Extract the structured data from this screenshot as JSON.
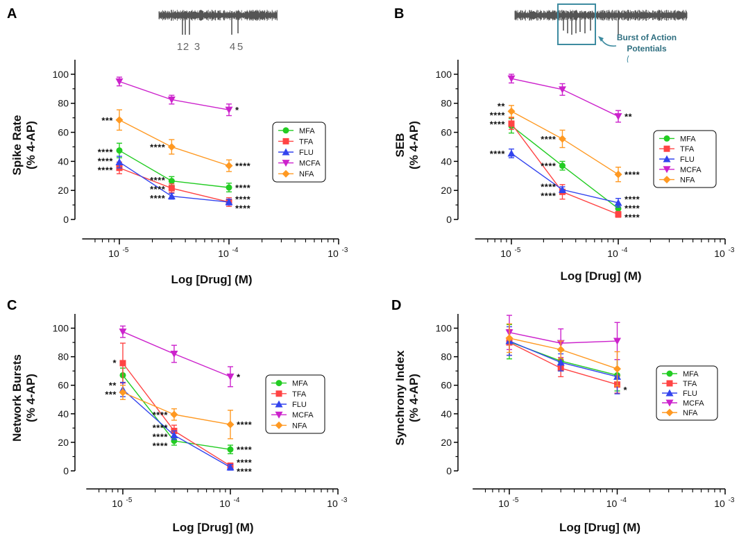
{
  "figure": {
    "trace_a_labels": [
      "1",
      "2",
      "3",
      "4",
      "5"
    ],
    "trace_b_callout": [
      "Burst of Action",
      "Potentials"
    ]
  },
  "colors": {
    "MFA": "#22cc22",
    "TFA": "#ff4444",
    "FLU": "#3344ee",
    "MCFA": "#cc22cc",
    "NFA": "#ff9922",
    "trace": "#555555",
    "callout": "#3d8ba0"
  },
  "chart_data": [
    {
      "panel": "A",
      "type": "line",
      "ylabel": [
        "Spike Rate",
        "(% 4-AP)"
      ],
      "xlabel": "Log [Drug] (M)",
      "xscale": "log",
      "xlim": [
        5e-06,
        0.001
      ],
      "ylim": [
        0,
        110
      ],
      "yticks": [
        "0",
        "20",
        "40",
        "60",
        "80",
        "100"
      ],
      "xtick_labels": [
        {
          "base": "10",
          "exp": "-5"
        },
        {
          "base": "10",
          "exp": "-4"
        },
        {
          "base": "10",
          "exp": "-3"
        }
      ],
      "legend": [
        "MFA",
        "TFA",
        "FLU",
        "MCFA",
        "NFA"
      ],
      "legend_position": "right",
      "x": [
        1e-05,
        3e-05,
        0.0001
      ],
      "series": [
        {
          "name": "MFA",
          "values": [
            47.5,
            26.5,
            22
          ],
          "err": [
            5,
            3,
            3
          ]
        },
        {
          "name": "TFA",
          "values": [
            35.5,
            21.5,
            12
          ],
          "err": [
            4,
            3,
            3
          ]
        },
        {
          "name": "FLU",
          "values": [
            39.5,
            16,
            12
          ],
          "err": [
            4,
            2,
            2
          ]
        },
        {
          "name": "MCFA",
          "values": [
            95,
            82.5,
            75.5
          ],
          "err": [
            3,
            3,
            4
          ]
        },
        {
          "name": "NFA",
          "values": [
            68.5,
            50,
            37
          ],
          "err": [
            7,
            5,
            4
          ]
        }
      ],
      "annotations": [
        {
          "x": 1e-05,
          "y": 68.5,
          "side": "left",
          "lines": [
            "***"
          ]
        },
        {
          "x": 1e-05,
          "y": 40.5,
          "side": "left",
          "lines": [
            "****",
            "****",
            "****"
          ]
        },
        {
          "x": 3e-05,
          "y": 50,
          "side": "left",
          "lines": [
            "****"
          ]
        },
        {
          "x": 3e-05,
          "y": 21,
          "side": "left",
          "lines": [
            "****",
            "****",
            "****"
          ]
        },
        {
          "x": 0.0001,
          "y": 75.5,
          "side": "right",
          "lines": [
            "*"
          ]
        },
        {
          "x": 0.0001,
          "y": 37,
          "side": "right",
          "lines": [
            "****"
          ]
        },
        {
          "x": 0.0001,
          "y": 22,
          "side": "right",
          "lines": [
            "****"
          ]
        },
        {
          "x": 0.0001,
          "y": 11,
          "side": "right",
          "lines": [
            "****",
            "****"
          ]
        }
      ]
    },
    {
      "panel": "B",
      "type": "line",
      "ylabel": [
        "SEB",
        "(% 4-AP)"
      ],
      "xlabel": "Log [Drug] (M)",
      "xscale": "log",
      "xlim": [
        5e-06,
        0.001
      ],
      "ylim": [
        0,
        110
      ],
      "yticks": [
        "0",
        "20",
        "40",
        "60",
        "80",
        "100"
      ],
      "xtick_labels": [
        {
          "base": "10",
          "exp": "-5"
        },
        {
          "base": "10",
          "exp": "-4"
        },
        {
          "base": "10",
          "exp": "-3"
        }
      ],
      "legend": [
        "MFA",
        "TFA",
        "FLU",
        "MCFA",
        "NFA"
      ],
      "legend_position": "right",
      "x": [
        1e-05,
        3e-05,
        0.0001
      ],
      "series": [
        {
          "name": "MFA",
          "values": [
            64.5,
            37,
            7.5
          ],
          "err": [
            5,
            3,
            3
          ]
        },
        {
          "name": "TFA",
          "values": [
            66,
            19,
            3.5
          ],
          "err": [
            4,
            5,
            2
          ]
        },
        {
          "name": "FLU",
          "values": [
            45.5,
            20.5,
            11.5
          ],
          "err": [
            3,
            2,
            3
          ]
        },
        {
          "name": "MCFA",
          "values": [
            97,
            89.5,
            71
          ],
          "err": [
            3,
            4,
            4
          ]
        },
        {
          "name": "NFA",
          "values": [
            74.5,
            55.5,
            31
          ],
          "err": [
            4,
            6,
            5
          ]
        }
      ],
      "annotations": [
        {
          "x": 1e-05,
          "y": 72,
          "side": "left",
          "lines": [
            "**",
            "****",
            "****"
          ]
        },
        {
          "x": 1e-05,
          "y": 45.5,
          "side": "left",
          "lines": [
            "****"
          ]
        },
        {
          "x": 3e-05,
          "y": 55.5,
          "side": "left",
          "lines": [
            "****"
          ]
        },
        {
          "x": 3e-05,
          "y": 37,
          "side": "left",
          "lines": [
            "****"
          ]
        },
        {
          "x": 3e-05,
          "y": 19.5,
          "side": "left",
          "lines": [
            "****",
            "****"
          ]
        },
        {
          "x": 0.0001,
          "y": 71,
          "side": "right",
          "lines": [
            "**"
          ]
        },
        {
          "x": 0.0001,
          "y": 31,
          "side": "right",
          "lines": [
            "****"
          ]
        },
        {
          "x": 0.0001,
          "y": 8,
          "side": "right",
          "lines": [
            "****",
            "****",
            "****"
          ]
        }
      ]
    },
    {
      "panel": "C",
      "type": "line",
      "ylabel": [
        "Network Bursts",
        "(% 4-AP)"
      ],
      "xlabel": "Log [Drug] (M)",
      "xscale": "log",
      "xlim": [
        5e-06,
        0.001
      ],
      "ylim": [
        0,
        110
      ],
      "yticks": [
        "0",
        "20",
        "40",
        "60",
        "80",
        "100"
      ],
      "xtick_labels": [
        {
          "base": "10",
          "exp": "-5"
        },
        {
          "base": "10",
          "exp": "-4"
        },
        {
          "base": "10",
          "exp": "-3"
        }
      ],
      "legend": [
        "MFA",
        "TFA",
        "FLU",
        "MCFA",
        "NFA"
      ],
      "legend_position": "right",
      "x": [
        1e-05,
        3e-05,
        0.0001
      ],
      "series": [
        {
          "name": "MFA",
          "values": [
            67,
            21,
            15
          ],
          "err": [
            5,
            3,
            3
          ]
        },
        {
          "name": "TFA",
          "values": [
            75.5,
            28,
            3.5
          ],
          "err": [
            14,
            4,
            2
          ]
        },
        {
          "name": "FLU",
          "values": [
            57,
            25,
            2.5
          ],
          "err": [
            5,
            3,
            2
          ]
        },
        {
          "name": "MCFA",
          "values": [
            97.5,
            82,
            66
          ],
          "err": [
            4,
            6,
            7
          ]
        },
        {
          "name": "NFA",
          "values": [
            55,
            39.5,
            32.5
          ],
          "err": [
            5,
            4,
            10
          ]
        }
      ],
      "annotations": [
        {
          "x": 1e-05,
          "y": 76,
          "side": "left",
          "lines": [
            "*"
          ]
        },
        {
          "x": 1e-05,
          "y": 57,
          "side": "left",
          "lines": [
            "**",
            "***"
          ]
        },
        {
          "x": 3e-05,
          "y": 39.5,
          "side": "left",
          "lines": [
            "****"
          ]
        },
        {
          "x": 3e-05,
          "y": 24,
          "side": "left",
          "lines": [
            "****",
            "****",
            "****"
          ]
        },
        {
          "x": 0.0001,
          "y": 66,
          "side": "right",
          "lines": [
            "*"
          ]
        },
        {
          "x": 0.0001,
          "y": 32.5,
          "side": "right",
          "lines": [
            "****"
          ]
        },
        {
          "x": 0.0001,
          "y": 15,
          "side": "right",
          "lines": [
            "****"
          ]
        },
        {
          "x": 0.0001,
          "y": 3,
          "side": "right",
          "lines": [
            "****",
            "****"
          ]
        }
      ]
    },
    {
      "panel": "D",
      "type": "line",
      "ylabel": [
        "Synchrony Index",
        "(% 4-AP)"
      ],
      "xlabel": "Log [Drug] (M)",
      "xscale": "log",
      "xlim": [
        5e-06,
        0.001
      ],
      "ylim": [
        0,
        110
      ],
      "yticks": [
        "0",
        "20",
        "40",
        "60",
        "80",
        "100"
      ],
      "xtick_labels": [
        {
          "base": "10",
          "exp": "-5"
        },
        {
          "base": "10",
          "exp": "-4"
        },
        {
          "base": "10",
          "exp": "-3"
        }
      ],
      "legend": [
        "MFA",
        "TFA",
        "FLU",
        "MCFA",
        "NFA"
      ],
      "legend_position": "right",
      "x": [
        1e-05,
        3e-05,
        0.0001
      ],
      "series": [
        {
          "name": "MFA",
          "values": [
            90.5,
            77,
            67
          ],
          "err": [
            12,
            7,
            11
          ]
        },
        {
          "name": "TFA",
          "values": [
            90,
            72,
            60.5
          ],
          "err": [
            9,
            6,
            6
          ]
        },
        {
          "name": "FLU",
          "values": [
            91,
            76,
            66
          ],
          "err": [
            10,
            6,
            12
          ]
        },
        {
          "name": "MCFA",
          "values": [
            97,
            89.5,
            91
          ],
          "err": [
            12,
            10,
            13
          ]
        },
        {
          "name": "NFA",
          "values": [
            93,
            85,
            71.5
          ],
          "err": [
            10,
            6,
            12
          ]
        }
      ],
      "annotations": [
        {
          "x": 0.0001,
          "y": 57,
          "side": "right",
          "lines": [
            "*"
          ]
        }
      ]
    }
  ]
}
